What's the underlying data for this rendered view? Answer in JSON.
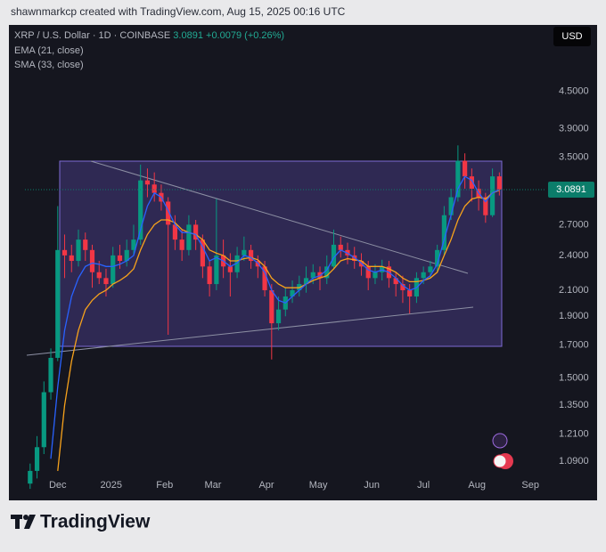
{
  "chart_data": {
    "type": "candlestick",
    "author_line": "shawnmarkcp created with TradingView.com, Aug 15, 2025 00:16 UTC",
    "symbol": "XRP / U.S. Dollar · 1D · COINBASE",
    "last_price": 3.0891,
    "change": {
      "value": 0.0079,
      "label": "+0.0079"
    },
    "change_pct": {
      "value": 0.26,
      "label": "(+0.26%)"
    },
    "currency": "USD",
    "brand": "TradingView",
    "log_scale": true,
    "grid": false,
    "up_color": "#089981",
    "down_color": "#f23645",
    "last_price_color": "#0b7d6a",
    "x": [
      -16,
      -12,
      -8,
      -4,
      0,
      4,
      8,
      12,
      16,
      20,
      24,
      28,
      32,
      36,
      40,
      44,
      48,
      52,
      56,
      60,
      64,
      68,
      72,
      76,
      80,
      84,
      88,
      92,
      96,
      100,
      104,
      108,
      112,
      116,
      120,
      124,
      128,
      132,
      136,
      140,
      144,
      148,
      152,
      156,
      160,
      164,
      168,
      172,
      176,
      180,
      184,
      188,
      192,
      196,
      200,
      204,
      208,
      212,
      216,
      220,
      224,
      228,
      232,
      236,
      240,
      244,
      248,
      252,
      256
    ],
    "open": [
      1.0,
      1.05,
      1.15,
      1.42,
      1.62,
      2.45,
      2.4,
      2.35,
      2.55,
      2.45,
      2.25,
      2.2,
      2.15,
      2.4,
      2.35,
      2.45,
      2.55,
      3.2,
      3.15,
      3.05,
      2.95,
      2.7,
      2.55,
      2.45,
      2.7,
      2.55,
      2.3,
      2.15,
      2.4,
      2.3,
      2.25,
      2.4,
      2.45,
      2.35,
      2.3,
      2.1,
      1.85,
      1.95,
      2.05,
      2.1,
      2.15,
      2.2,
      2.25,
      2.2,
      2.3,
      2.5,
      2.45,
      2.4,
      2.35,
      2.3,
      2.2,
      2.25,
      2.3,
      2.2,
      2.15,
      2.1,
      2.05,
      2.2,
      2.25,
      2.3,
      2.45,
      2.8,
      3.0,
      3.45,
      3.25,
      3.1,
      3.0,
      2.8,
      3.25
    ],
    "high": [
      1.08,
      1.2,
      1.48,
      1.68,
      2.9,
      2.6,
      2.5,
      2.65,
      2.62,
      2.5,
      2.35,
      2.28,
      2.48,
      2.5,
      2.55,
      2.7,
      3.4,
      3.35,
      3.3,
      3.15,
      3.0,
      2.8,
      2.65,
      2.8,
      2.75,
      2.6,
      2.35,
      2.98,
      2.55,
      2.42,
      2.48,
      2.58,
      2.5,
      2.4,
      2.35,
      2.15,
      2.05,
      2.12,
      2.18,
      2.22,
      2.3,
      2.32,
      2.3,
      2.4,
      2.65,
      2.58,
      2.52,
      2.48,
      2.42,
      2.35,
      2.32,
      2.36,
      2.35,
      2.25,
      2.22,
      2.15,
      2.25,
      2.3,
      2.35,
      2.5,
      2.9,
      3.1,
      3.66,
      3.55,
      3.35,
      3.2,
      3.05,
      3.35,
      3.3
    ],
    "low": [
      0.98,
      1.02,
      1.12,
      1.38,
      1.6,
      2.2,
      2.25,
      2.3,
      2.35,
      2.12,
      2.15,
      2.05,
      2.12,
      2.28,
      2.3,
      2.4,
      2.5,
      3.0,
      2.95,
      2.85,
      1.77,
      2.45,
      2.35,
      2.4,
      2.45,
      2.2,
      2.05,
      2.1,
      2.2,
      2.05,
      2.2,
      2.35,
      2.28,
      2.2,
      2.05,
      1.61,
      1.8,
      1.9,
      2.0,
      2.05,
      2.08,
      2.15,
      2.1,
      2.15,
      2.28,
      2.38,
      2.32,
      2.28,
      2.22,
      2.1,
      2.15,
      2.18,
      2.12,
      2.05,
      2.0,
      1.92,
      2.0,
      2.15,
      2.2,
      2.25,
      2.4,
      2.75,
      2.95,
      3.1,
      2.95,
      2.85,
      2.72,
      2.78,
      3.02
    ],
    "close": [
      1.05,
      1.15,
      1.42,
      1.62,
      2.45,
      2.4,
      2.35,
      2.55,
      2.45,
      2.25,
      2.2,
      2.15,
      2.4,
      2.35,
      2.45,
      2.55,
      3.2,
      3.15,
      3.05,
      2.95,
      2.7,
      2.55,
      2.45,
      2.7,
      2.55,
      2.3,
      2.15,
      2.4,
      2.3,
      2.25,
      2.4,
      2.45,
      2.35,
      2.3,
      2.1,
      1.85,
      1.95,
      2.05,
      2.1,
      2.15,
      2.2,
      2.25,
      2.2,
      2.3,
      2.5,
      2.45,
      2.4,
      2.35,
      2.3,
      2.2,
      2.25,
      2.3,
      2.2,
      2.15,
      2.1,
      2.05,
      2.2,
      2.25,
      2.3,
      2.45,
      2.8,
      3.0,
      3.45,
      3.25,
      3.1,
      3.0,
      2.8,
      3.25,
      3.09
    ],
    "series": [
      {
        "name": "EMA (21, close)",
        "color": "#f7a21b",
        "values": [
          null,
          null,
          null,
          null,
          1.05,
          1.35,
          1.6,
          1.8,
          1.95,
          2.02,
          2.07,
          2.1,
          2.15,
          2.18,
          2.22,
          2.28,
          2.45,
          2.6,
          2.7,
          2.75,
          2.75,
          2.72,
          2.65,
          2.62,
          2.6,
          2.55,
          2.45,
          2.42,
          2.4,
          2.35,
          2.35,
          2.37,
          2.38,
          2.36,
          2.3,
          2.2,
          2.15,
          2.12,
          2.12,
          2.12,
          2.15,
          2.18,
          2.2,
          2.22,
          2.28,
          2.35,
          2.37,
          2.36,
          2.35,
          2.3,
          2.3,
          2.3,
          2.28,
          2.25,
          2.2,
          2.17,
          2.17,
          2.18,
          2.2,
          2.25,
          2.4,
          2.55,
          2.75,
          2.9,
          2.98,
          3.0,
          2.98,
          3.05,
          3.08
        ]
      },
      {
        "name": "SMA (33, close)",
        "color": "#2962ff",
        "values": [
          null,
          null,
          null,
          1.1,
          1.45,
          1.8,
          2.05,
          2.2,
          2.3,
          2.33,
          2.32,
          2.3,
          2.3,
          2.32,
          2.35,
          2.4,
          2.65,
          2.9,
          3.05,
          3.0,
          2.85,
          2.7,
          2.62,
          2.62,
          2.6,
          2.48,
          2.35,
          2.38,
          2.35,
          2.3,
          2.33,
          2.4,
          2.38,
          2.33,
          2.25,
          2.1,
          2.02,
          2.0,
          2.05,
          2.1,
          2.15,
          2.2,
          2.22,
          2.27,
          2.38,
          2.45,
          2.42,
          2.38,
          2.33,
          2.27,
          2.25,
          2.27,
          2.25,
          2.2,
          2.14,
          2.1,
          2.12,
          2.18,
          2.22,
          2.32,
          2.55,
          2.8,
          3.1,
          3.25,
          3.2,
          3.05,
          2.95,
          3.05,
          3.09
        ]
      }
    ],
    "xlim": [
      -19,
      283
    ],
    "xticks": [
      {
        "value": 0,
        "label": "Dec"
      },
      {
        "value": 31,
        "label": "2025"
      },
      {
        "value": 62,
        "label": "Feb"
      },
      {
        "value": 90,
        "label": "Mar"
      },
      {
        "value": 121,
        "label": "Apr"
      },
      {
        "value": 151,
        "label": "May"
      },
      {
        "value": 182,
        "label": "Jun"
      },
      {
        "value": 212,
        "label": "Jul"
      },
      {
        "value": 243,
        "label": "Aug"
      },
      {
        "value": 274,
        "label": "Sep"
      }
    ],
    "ylim": [
      0.977,
      5.81
    ],
    "yticks": [
      {
        "value": 4.5,
        "label": "4.5000"
      },
      {
        "value": 3.9,
        "label": "3.9000"
      },
      {
        "value": 3.5,
        "label": "3.5000"
      },
      {
        "value": 2.7,
        "label": "2.7000"
      },
      {
        "value": 2.4,
        "label": "2.4000"
      },
      {
        "value": 2.1,
        "label": "2.1000"
      },
      {
        "value": 1.9,
        "label": "1.9000"
      },
      {
        "value": 1.7,
        "label": "1.7000"
      },
      {
        "value": 1.5,
        "label": "1.5000"
      },
      {
        "value": 1.35,
        "label": "1.3500"
      },
      {
        "value": 1.21,
        "label": "1.2100"
      },
      {
        "value": 1.09,
        "label": "1.0900"
      }
    ]
  }
}
